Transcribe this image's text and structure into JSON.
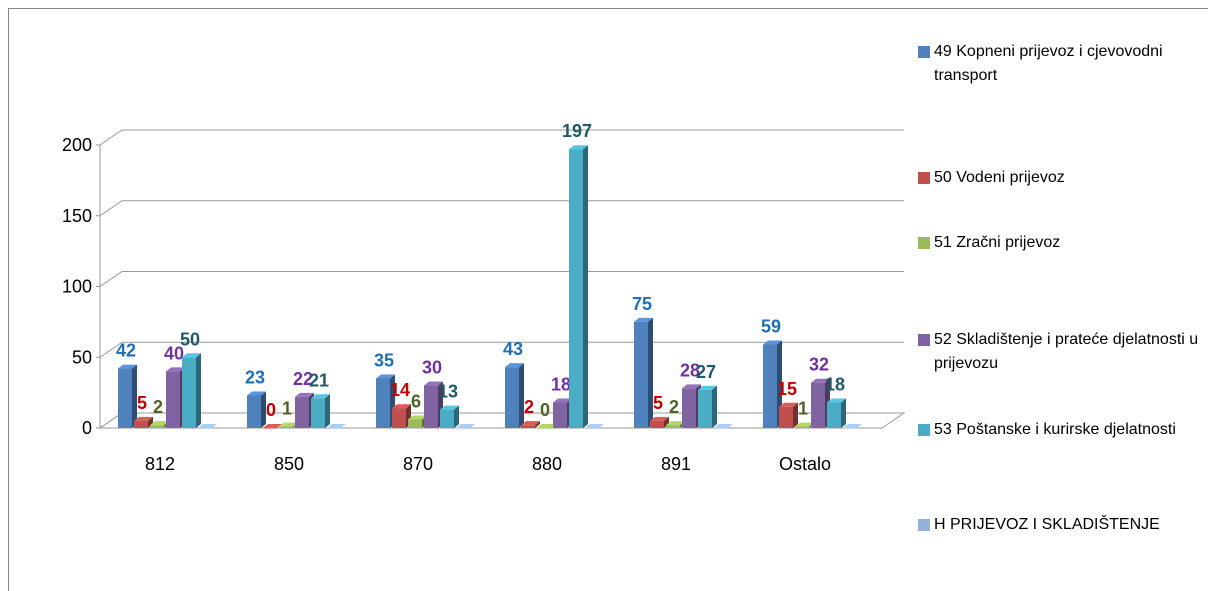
{
  "chart_data": {
    "type": "bar3d",
    "categories": [
      "812",
      "850",
      "870",
      "880",
      "891",
      "Ostalo"
    ],
    "ylim": [
      0,
      200
    ],
    "yticks": [
      0,
      50,
      100,
      150,
      200
    ],
    "grid": true,
    "legend": "right",
    "series": [
      {
        "name": "49 Kopneni prijevoz i cjevovodni transport",
        "color": "#4f81bd",
        "label_color": "#1f6fb2",
        "show_labels": true,
        "values": [
          42,
          23,
          35,
          43,
          75,
          59
        ]
      },
      {
        "name": "50 Vodeni prijevoz",
        "color": "#c0504d",
        "label_color": "#c00000",
        "show_labels": true,
        "values": [
          5,
          0,
          14,
          2,
          5,
          15
        ]
      },
      {
        "name": "51 Zračni prijevoz",
        "color": "#9bbb59",
        "label_color": "#4f6228",
        "show_labels": true,
        "values": [
          2,
          1,
          6,
          0,
          2,
          1
        ]
      },
      {
        "name": "52 Skladištenje i prateće djelatnosti u prijevozu",
        "color": "#8064a2",
        "label_color": "#7030a0",
        "show_labels": true,
        "values": [
          40,
          22,
          30,
          18,
          28,
          32
        ]
      },
      {
        "name": "53 Poštanske i kurirske djelatnosti",
        "color": "#4bacc6",
        "label_color": "#215967",
        "show_labels": true,
        "values": [
          50,
          21,
          13,
          197,
          27,
          18
        ]
      },
      {
        "name": "H PRIJEVOZ I SKLADIŠTENJE",
        "color": "#95b3d7",
        "label_color": "#000000",
        "show_labels": false,
        "values": [
          0,
          0,
          0,
          0,
          0,
          0
        ]
      }
    ]
  }
}
